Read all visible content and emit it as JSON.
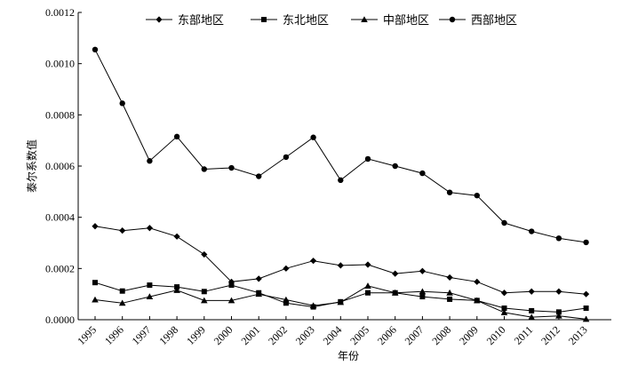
{
  "chart_data": {
    "type": "line",
    "title": "",
    "xlabel": "年份",
    "ylabel": "泰尔系数值",
    "categories": [
      "1995",
      "1996",
      "1997",
      "1998",
      "1999",
      "2000",
      "2001",
      "2002",
      "2003",
      "2004",
      "2005",
      "2006",
      "2007",
      "2008",
      "2009",
      "2010",
      "2011",
      "2012",
      "2013"
    ],
    "ylim": [
      0,
      0.0012
    ],
    "yticks": [
      "0.0000",
      "0.0002",
      "0.0004",
      "0.0006",
      "0.0008",
      "0.0010",
      "0.0012"
    ],
    "legend_position": "top",
    "grid": false,
    "series": [
      {
        "name": "东部地区",
        "marker": "diamond",
        "values": [
          0.000365,
          0.000348,
          0.000358,
          0.000325,
          0.000255,
          0.000148,
          0.00016,
          0.0002,
          0.00023,
          0.000212,
          0.000215,
          0.00018,
          0.00019,
          0.000165,
          0.000148,
          0.000105,
          0.00011,
          0.00011,
          0.0001
        ]
      },
      {
        "name": "东北地区",
        "marker": "square",
        "values": [
          0.000145,
          0.000112,
          0.000135,
          0.000128,
          0.00011,
          0.000135,
          0.000105,
          6.5e-05,
          5e-05,
          7e-05,
          0.000105,
          0.000105,
          9e-05,
          8e-05,
          7.5e-05,
          4.5e-05,
          3.5e-05,
          3e-05,
          4.5e-05
        ]
      },
      {
        "name": "中部地区",
        "marker": "triangle",
        "values": [
          7.8e-05,
          6.5e-05,
          9e-05,
          0.000115,
          7.5e-05,
          7.5e-05,
          0.0001,
          7.8e-05,
          5.5e-05,
          6.8e-05,
          0.000132,
          0.000105,
          0.00011,
          0.000105,
          7.5e-05,
          2.8e-05,
          1e-05,
          1.5e-05,
          2e-06
        ]
      },
      {
        "name": "西部地区",
        "marker": "circle",
        "values": [
          0.001055,
          0.000845,
          0.00062,
          0.000715,
          0.000588,
          0.000593,
          0.00056,
          0.000635,
          0.000712,
          0.000545,
          0.000628,
          0.0006,
          0.000572,
          0.000497,
          0.000485,
          0.000378,
          0.000345,
          0.000318,
          0.000302
        ]
      }
    ]
  }
}
